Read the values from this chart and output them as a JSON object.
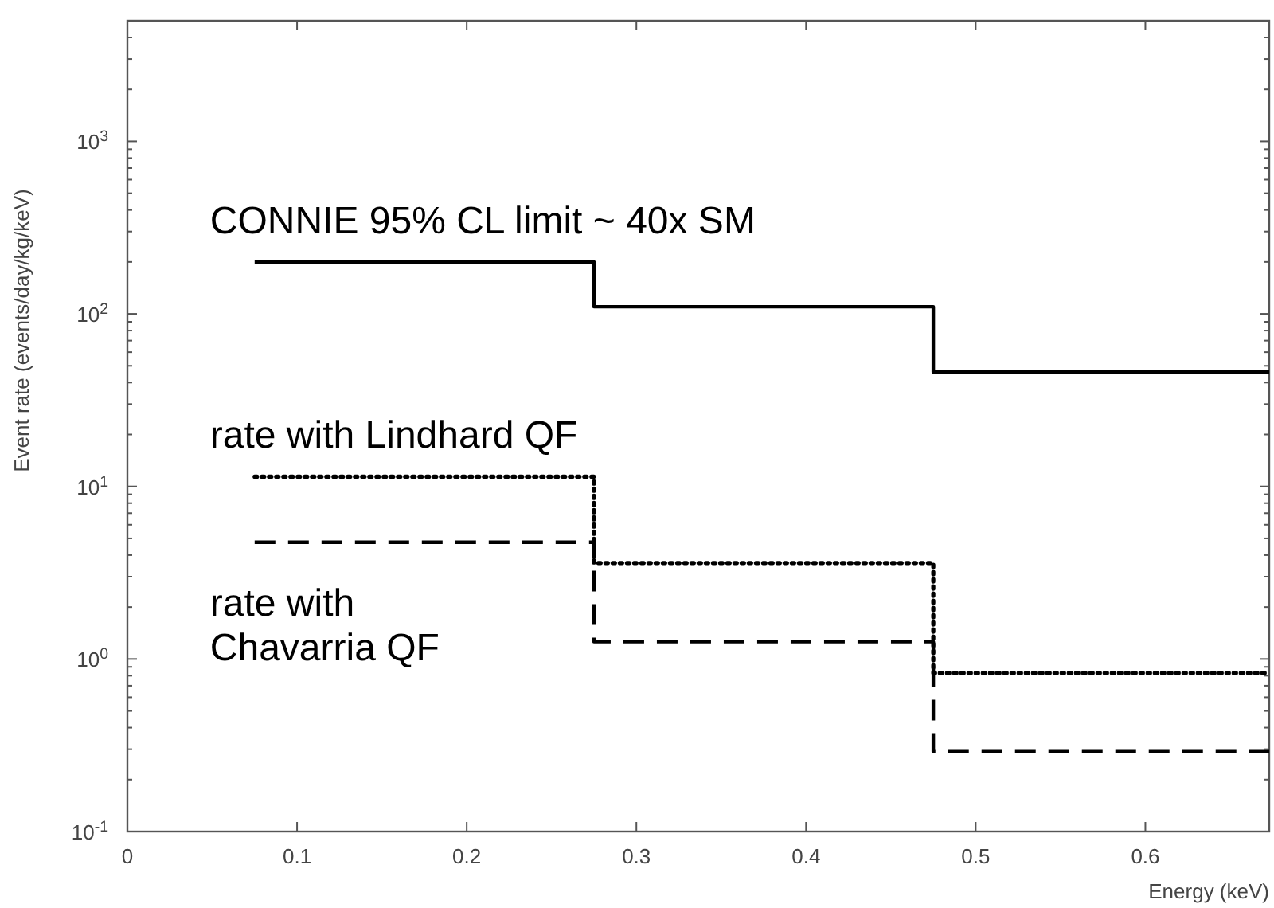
{
  "chart_data": {
    "type": "step",
    "xlabel": "Energy (keV)",
    "ylabel": "Event rate (events/day/kg/keV)",
    "log": "y",
    "xlim": [
      0,
      0.673
    ],
    "xticks": [
      0,
      0.1,
      0.2,
      0.3,
      0.4,
      0.5,
      0.6
    ],
    "ylim": [
      0.1,
      5000
    ],
    "yticks": [
      {
        "value": 0.1,
        "label": "10$^{-1}$"
      },
      {
        "value": 1,
        "label": "10$^{0}$"
      },
      {
        "value": 10,
        "label": "10$^{1}$"
      },
      {
        "value": 100,
        "label": "10$^{2}$"
      },
      {
        "value": 1000,
        "label": "10$^{3}$"
      }
    ],
    "grid": false,
    "series": [
      {
        "name": "CONNIE 95% CL limit  ~ 40x SM",
        "color": "#000000",
        "line_style": "solid",
        "x": [
          0.075,
          0.275,
          0.475,
          0.673
        ],
        "values": [
          200,
          110,
          46,
          46
        ]
      },
      {
        "name": "rate with Lindhard QF",
        "color": "#000000",
        "line_style": "dotted",
        "x": [
          0.075,
          0.275,
          0.475,
          0.673
        ],
        "values": [
          11.4,
          3.6,
          0.83,
          0.83
        ]
      },
      {
        "name": "rate with\nChavarria QF",
        "color": "#000000",
        "line_style": "dashed",
        "x": [
          0.075,
          0.275,
          0.475,
          0.673
        ],
        "values": [
          4.75,
          1.26,
          0.29,
          0.29
        ]
      }
    ]
  }
}
